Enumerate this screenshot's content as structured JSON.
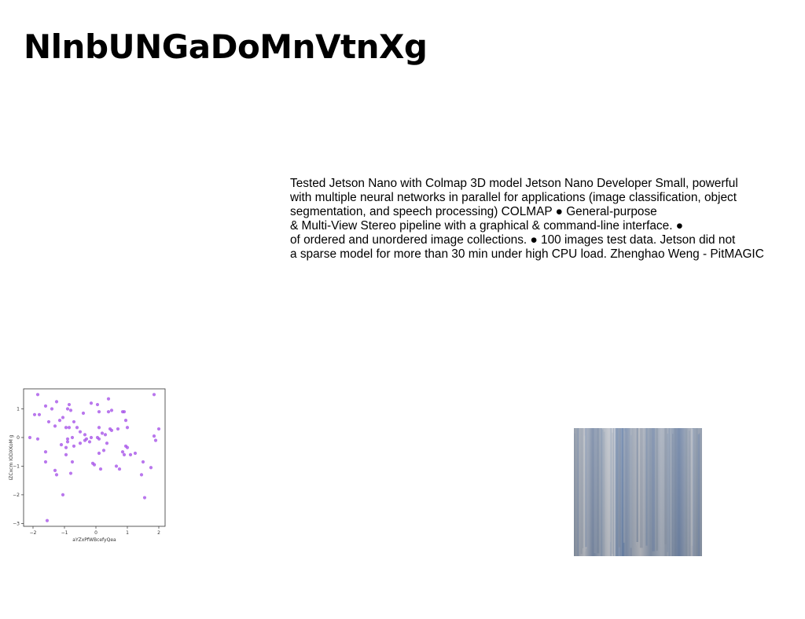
{
  "page": {
    "title": "NlnbUNGaDoMnVtnXg"
  },
  "body_text": {
    "lines": [
      "Tested Jetson Nano with Colmap 3D model Jetson Nano Developer Small, powerful",
      "with multiple neural networks in parallel for applications (image classification, object",
      "segmentation, and speech processing) COLMAP ● General-purpose",
      "& Multi-View Stereo pipeline with a graphical & command-line interface. ●",
      "of ordered and unordered image collections. ● 100 images test data. Jetson did not",
      "a sparse model for more than 30 min under high CPU load. Zhenghao Weng - PitMAGIC"
    ]
  },
  "chart_data": {
    "type": "scatter",
    "title": "",
    "xlabel": "aYZxPfWBcefyQea",
    "ylabel": "IZCxcm IODXKoM g",
    "xlim": [
      -2.3,
      2.2
    ],
    "ylim": [
      -3.1,
      1.7
    ],
    "xticks": [
      -2,
      -1,
      0,
      1,
      2
    ],
    "yticks": [
      -3,
      -2,
      -1,
      0,
      1
    ],
    "xtick_labels": [
      "−2",
      "−1",
      "0",
      "1",
      "2"
    ],
    "ytick_labels": [
      "−3",
      "−2",
      "−1",
      "0",
      "1"
    ],
    "grid": false,
    "marker_color": "#a855e8",
    "points": [
      [
        -1.85,
        1.5
      ],
      [
        -1.95,
        0.8
      ],
      [
        -1.8,
        0.8
      ],
      [
        -2.1,
        0.0
      ],
      [
        -1.85,
        -0.05
      ],
      [
        -1.6,
        1.1
      ],
      [
        -1.4,
        1.0
      ],
      [
        -1.25,
        1.25
      ],
      [
        -1.5,
        0.55
      ],
      [
        -1.3,
        0.4
      ],
      [
        -1.15,
        0.6
      ],
      [
        -1.05,
        0.7
      ],
      [
        -0.9,
        1.0
      ],
      [
        -0.85,
        1.15
      ],
      [
        -0.8,
        0.95
      ],
      [
        -0.95,
        0.35
      ],
      [
        -0.85,
        0.35
      ],
      [
        -0.7,
        0.55
      ],
      [
        -0.6,
        0.35
      ],
      [
        -0.4,
        0.85
      ],
      [
        -0.5,
        0.2
      ],
      [
        -0.35,
        0.1
      ],
      [
        -0.3,
        -0.05
      ],
      [
        -0.2,
        -0.15
      ],
      [
        -0.15,
        0.0
      ],
      [
        -0.75,
        0.0
      ],
      [
        -0.9,
        -0.05
      ],
      [
        -0.9,
        -0.15
      ],
      [
        -0.95,
        -0.35
      ],
      [
        -1.1,
        -0.25
      ],
      [
        -0.7,
        -0.3
      ],
      [
        -0.5,
        -0.2
      ],
      [
        -0.35,
        -0.1
      ],
      [
        -1.6,
        -0.5
      ],
      [
        -1.6,
        -0.85
      ],
      [
        -1.3,
        -1.15
      ],
      [
        -1.25,
        -1.3
      ],
      [
        -0.75,
        -0.85
      ],
      [
        -0.95,
        -0.6
      ],
      [
        -0.8,
        -1.25
      ],
      [
        -1.05,
        -2.0
      ],
      [
        -1.55,
        -2.9
      ],
      [
        -0.15,
        1.2
      ],
      [
        0.05,
        1.15
      ],
      [
        0.1,
        0.9
      ],
      [
        0.4,
        1.35
      ],
      [
        0.4,
        0.9
      ],
      [
        0.5,
        0.95
      ],
      [
        0.85,
        0.9
      ],
      [
        0.9,
        0.9
      ],
      [
        0.95,
        0.6
      ],
      [
        0.1,
        0.35
      ],
      [
        0.2,
        0.15
      ],
      [
        0.3,
        0.1
      ],
      [
        0.45,
        0.3
      ],
      [
        0.5,
        0.25
      ],
      [
        0.7,
        0.3
      ],
      [
        1.0,
        0.35
      ],
      [
        0.05,
        0.0
      ],
      [
        0.1,
        -0.05
      ],
      [
        0.35,
        -0.2
      ],
      [
        0.25,
        -0.45
      ],
      [
        0.1,
        -0.55
      ],
      [
        0.15,
        -1.1
      ],
      [
        -0.1,
        -0.9
      ],
      [
        -0.05,
        -0.95
      ],
      [
        0.65,
        -1.0
      ],
      [
        0.75,
        -1.1
      ],
      [
        0.85,
        -0.5
      ],
      [
        0.9,
        -0.6
      ],
      [
        0.95,
        -0.3
      ],
      [
        1.0,
        -0.35
      ],
      [
        1.1,
        -0.6
      ],
      [
        1.25,
        -0.55
      ],
      [
        1.45,
        -1.3
      ],
      [
        1.5,
        -0.85
      ],
      [
        1.75,
        -1.05
      ],
      [
        1.55,
        -2.1
      ],
      [
        1.85,
        1.5
      ],
      [
        1.85,
        0.05
      ],
      [
        1.9,
        -0.1
      ],
      [
        2.0,
        0.3
      ]
    ]
  },
  "images": {
    "texture": {
      "description_icon": "texture-image-icon",
      "colors": [
        "#8a96a8",
        "#9aa6b8",
        "#6f86aa",
        "#c0c4cc",
        "#7a8aa2"
      ]
    }
  }
}
